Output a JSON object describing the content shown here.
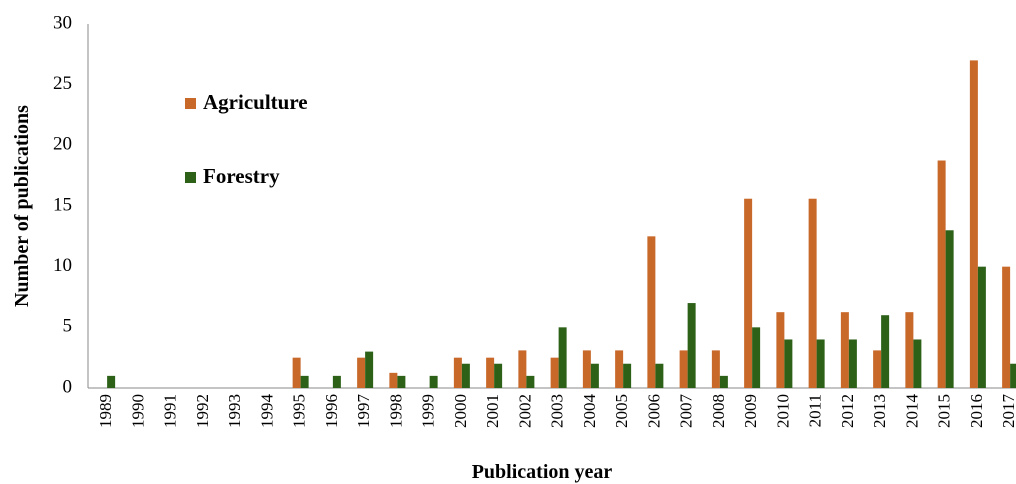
{
  "chart_data": {
    "type": "bar",
    "x_label": "Publication year",
    "y_label": "Number of publications",
    "categories": [
      "1989",
      "1990",
      "1991",
      "1992",
      "1993",
      "1994",
      "1995",
      "1996",
      "1997",
      "1998",
      "1999",
      "2000",
      "2001",
      "2002",
      "2003",
      "2004",
      "2005",
      "2006",
      "2007",
      "2008",
      "2009",
      "2010",
      "2011",
      "2012",
      "2013",
      "2014",
      "2015",
      "2016",
      "2017"
    ],
    "series": [
      {
        "name": "Agriculture",
        "color": "#c8692a",
        "values": [
          0,
          0,
          0,
          0,
          0,
          0,
          2.5,
          0,
          2.5,
          1.25,
          0,
          2.5,
          2.5,
          3.1,
          2.5,
          3.1,
          3.1,
          12.5,
          3.1,
          3.1,
          15.6,
          6.25,
          15.6,
          6.25,
          3.1,
          6.25,
          18.75,
          27,
          10
        ]
      },
      {
        "name": "Forestry",
        "color": "#2d6118",
        "values": [
          1,
          0,
          0,
          0,
          0,
          0,
          1,
          1,
          3,
          1,
          1,
          2,
          2,
          1,
          5,
          2,
          2,
          2,
          7,
          1,
          5,
          4,
          4,
          4,
          6,
          4,
          13,
          10,
          2
        ]
      }
    ],
    "ylim": [
      0,
      30
    ],
    "yticks": [
      0,
      5,
      10,
      15,
      20,
      25,
      30
    ],
    "grid": false
  }
}
